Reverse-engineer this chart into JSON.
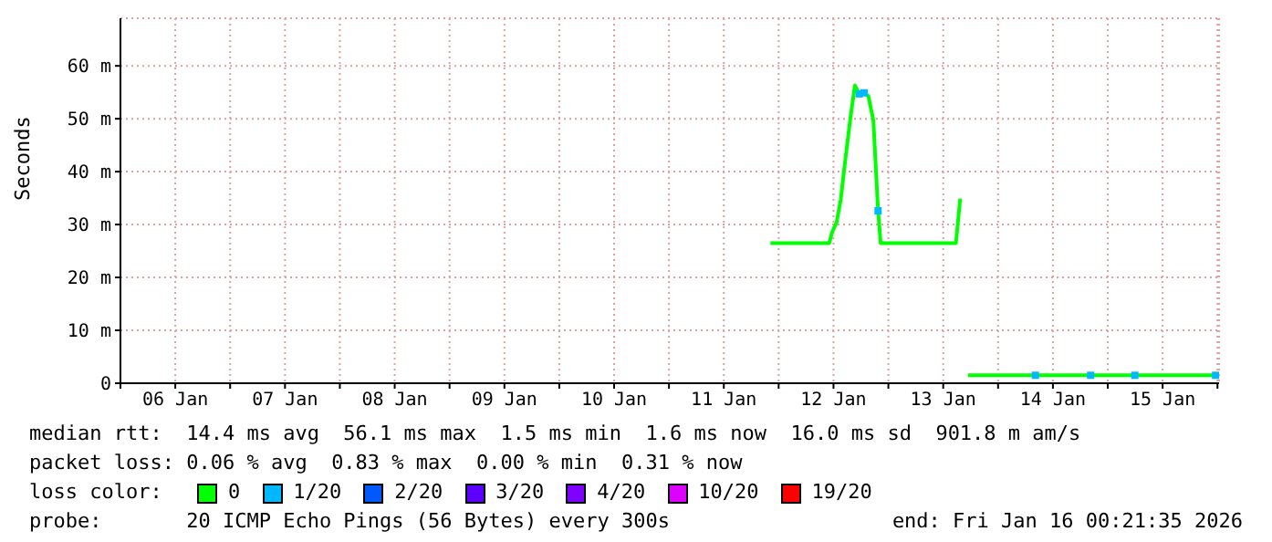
{
  "chart_data": {
    "type": "line",
    "ylabel": "Seconds",
    "legend_title": "loss color:",
    "legend": "bottom",
    "grid": true,
    "xlim": [
      "2026-01-06T00:00",
      "2026-01-16T00:21"
    ],
    "xticks": [
      {
        "value": "2026-01-06T00:00",
        "label": null
      },
      {
        "value": "2026-01-06T12:00",
        "label": "06 Jan"
      },
      {
        "value": "2026-01-07T00:00",
        "label": null
      },
      {
        "value": "2026-01-07T12:00",
        "label": "07 Jan"
      },
      {
        "value": "2026-01-08T00:00",
        "label": null
      },
      {
        "value": "2026-01-08T12:00",
        "label": "08 Jan"
      },
      {
        "value": "2026-01-09T00:00",
        "label": null
      },
      {
        "value": "2026-01-09T12:00",
        "label": "09 Jan"
      },
      {
        "value": "2026-01-10T00:00",
        "label": null
      },
      {
        "value": "2026-01-10T12:00",
        "label": "10 Jan"
      },
      {
        "value": "2026-01-11T00:00",
        "label": null
      },
      {
        "value": "2026-01-11T12:00",
        "label": "11 Jan"
      },
      {
        "value": "2026-01-12T00:00",
        "label": null
      },
      {
        "value": "2026-01-12T12:00",
        "label": "12 Jan"
      },
      {
        "value": "2026-01-13T00:00",
        "label": null
      },
      {
        "value": "2026-01-13T12:00",
        "label": "13 Jan"
      },
      {
        "value": "2026-01-14T00:00",
        "label": null
      },
      {
        "value": "2026-01-14T12:00",
        "label": "14 Jan"
      },
      {
        "value": "2026-01-15T00:00",
        "label": null
      },
      {
        "value": "2026-01-15T12:00",
        "label": "15 Jan"
      },
      {
        "value": "2026-01-16T00:00",
        "label": null
      }
    ],
    "ylim": [
      0,
      69
    ],
    "yticks": [
      0,
      {
        "value": 10,
        "label": "10 m"
      },
      {
        "value": 20,
        "label": "20 m"
      },
      {
        "value": 30,
        "label": "30 m"
      },
      {
        "value": 40,
        "label": "40 m"
      },
      {
        "value": 50,
        "label": "50 m"
      },
      {
        "value": 60,
        "label": "60 m"
      }
    ],
    "x": [
      "2026-01-11T22:12",
      "2026-01-12T11:04",
      "2026-01-12T11:41",
      "2026-01-12T12:40",
      "2026-01-12T13:35",
      "2026-01-12T14:31",
      "2026-01-12T15:43",
      "2026-01-12T16:41",
      "2026-01-12T17:37",
      "2026-01-12T18:42",
      "2026-01-12T19:37",
      "2026-01-12T20:43",
      "2026-01-12T21:45",
      "2026-01-12T22:19",
      "2026-01-13T14:47",
      "2026-01-13T15:43",
      "2026-01-13T16:30",
      "2026-01-13T17:27",
      "2026-01-16T00:20"
    ],
    "series": [
      {
        "name": "0",
        "color": "#00ff00",
        "values": [
          26.5,
          26.5,
          28.5,
          30.4,
          34.7,
          41.8,
          50.3,
          56.3,
          54.7,
          54.9,
          54.3,
          49.7,
          32.6,
          26.5,
          26.5,
          34.9,
          null,
          1.5,
          1.5
        ]
      },
      {
        "name": "1/20",
        "color": "#00b8ff",
        "type": "scatter",
        "marker": "square",
        "x": [
          "2026-01-12T17:37",
          "2026-01-12T18:42",
          "2026-01-12T21:45",
          "2026-01-14T08:10",
          "2026-01-14T20:15",
          "2026-01-15T05:55",
          "2026-01-15T23:35"
        ],
        "values": [
          54.7,
          54.9,
          32.6,
          1.5,
          1.5,
          1.5,
          1.5
        ]
      },
      {
        "name": "2/20",
        "color": "#0059ff",
        "type": "scatter",
        "marker": "square",
        "values": [
          null,
          null,
          null,
          null,
          null,
          null,
          null,
          null,
          null,
          null,
          null,
          null,
          null,
          null,
          null,
          null,
          null,
          null,
          null
        ]
      },
      {
        "name": "3/20",
        "color": "#5e00ff",
        "type": "scatter",
        "marker": "square",
        "values": [
          null,
          null,
          null,
          null,
          null,
          null,
          null,
          null,
          null,
          null,
          null,
          null,
          null,
          null,
          null,
          null,
          null,
          null,
          null
        ]
      },
      {
        "name": "4/20",
        "color": "#7e00ff",
        "type": "scatter",
        "marker": "square",
        "values": [
          null,
          null,
          null,
          null,
          null,
          null,
          null,
          null,
          null,
          null,
          null,
          null,
          null,
          null,
          null,
          null,
          null,
          null,
          null
        ]
      },
      {
        "name": "10/20",
        "color": "#dd00ff",
        "type": "scatter",
        "marker": "square",
        "values": [
          null,
          null,
          null,
          null,
          null,
          null,
          null,
          null,
          null,
          null,
          null,
          null,
          null,
          null,
          null,
          null,
          null,
          null,
          null
        ]
      },
      {
        "name": "19/20",
        "color": "#ff0000",
        "type": "scatter",
        "marker": "square",
        "values": [
          null,
          null,
          null,
          null,
          null,
          null,
          null,
          null,
          null,
          null,
          null,
          null,
          null,
          null,
          null,
          null,
          null,
          null,
          null
        ]
      }
    ],
    "annotations": [
      "median rtt:  14.4 ms avg  56.1 ms max  1.5 ms min  1.6 ms now  16.0 ms sd  901.8 m am/s",
      "packet loss: 0.06 % avg  0.83 % max  0.00 % min  0.31 % now",
      "probe:       20 ICMP Echo Pings (56 Bytes) every 300s",
      "end: Fri Jan 16 00:21:35 2026"
    ]
  }
}
